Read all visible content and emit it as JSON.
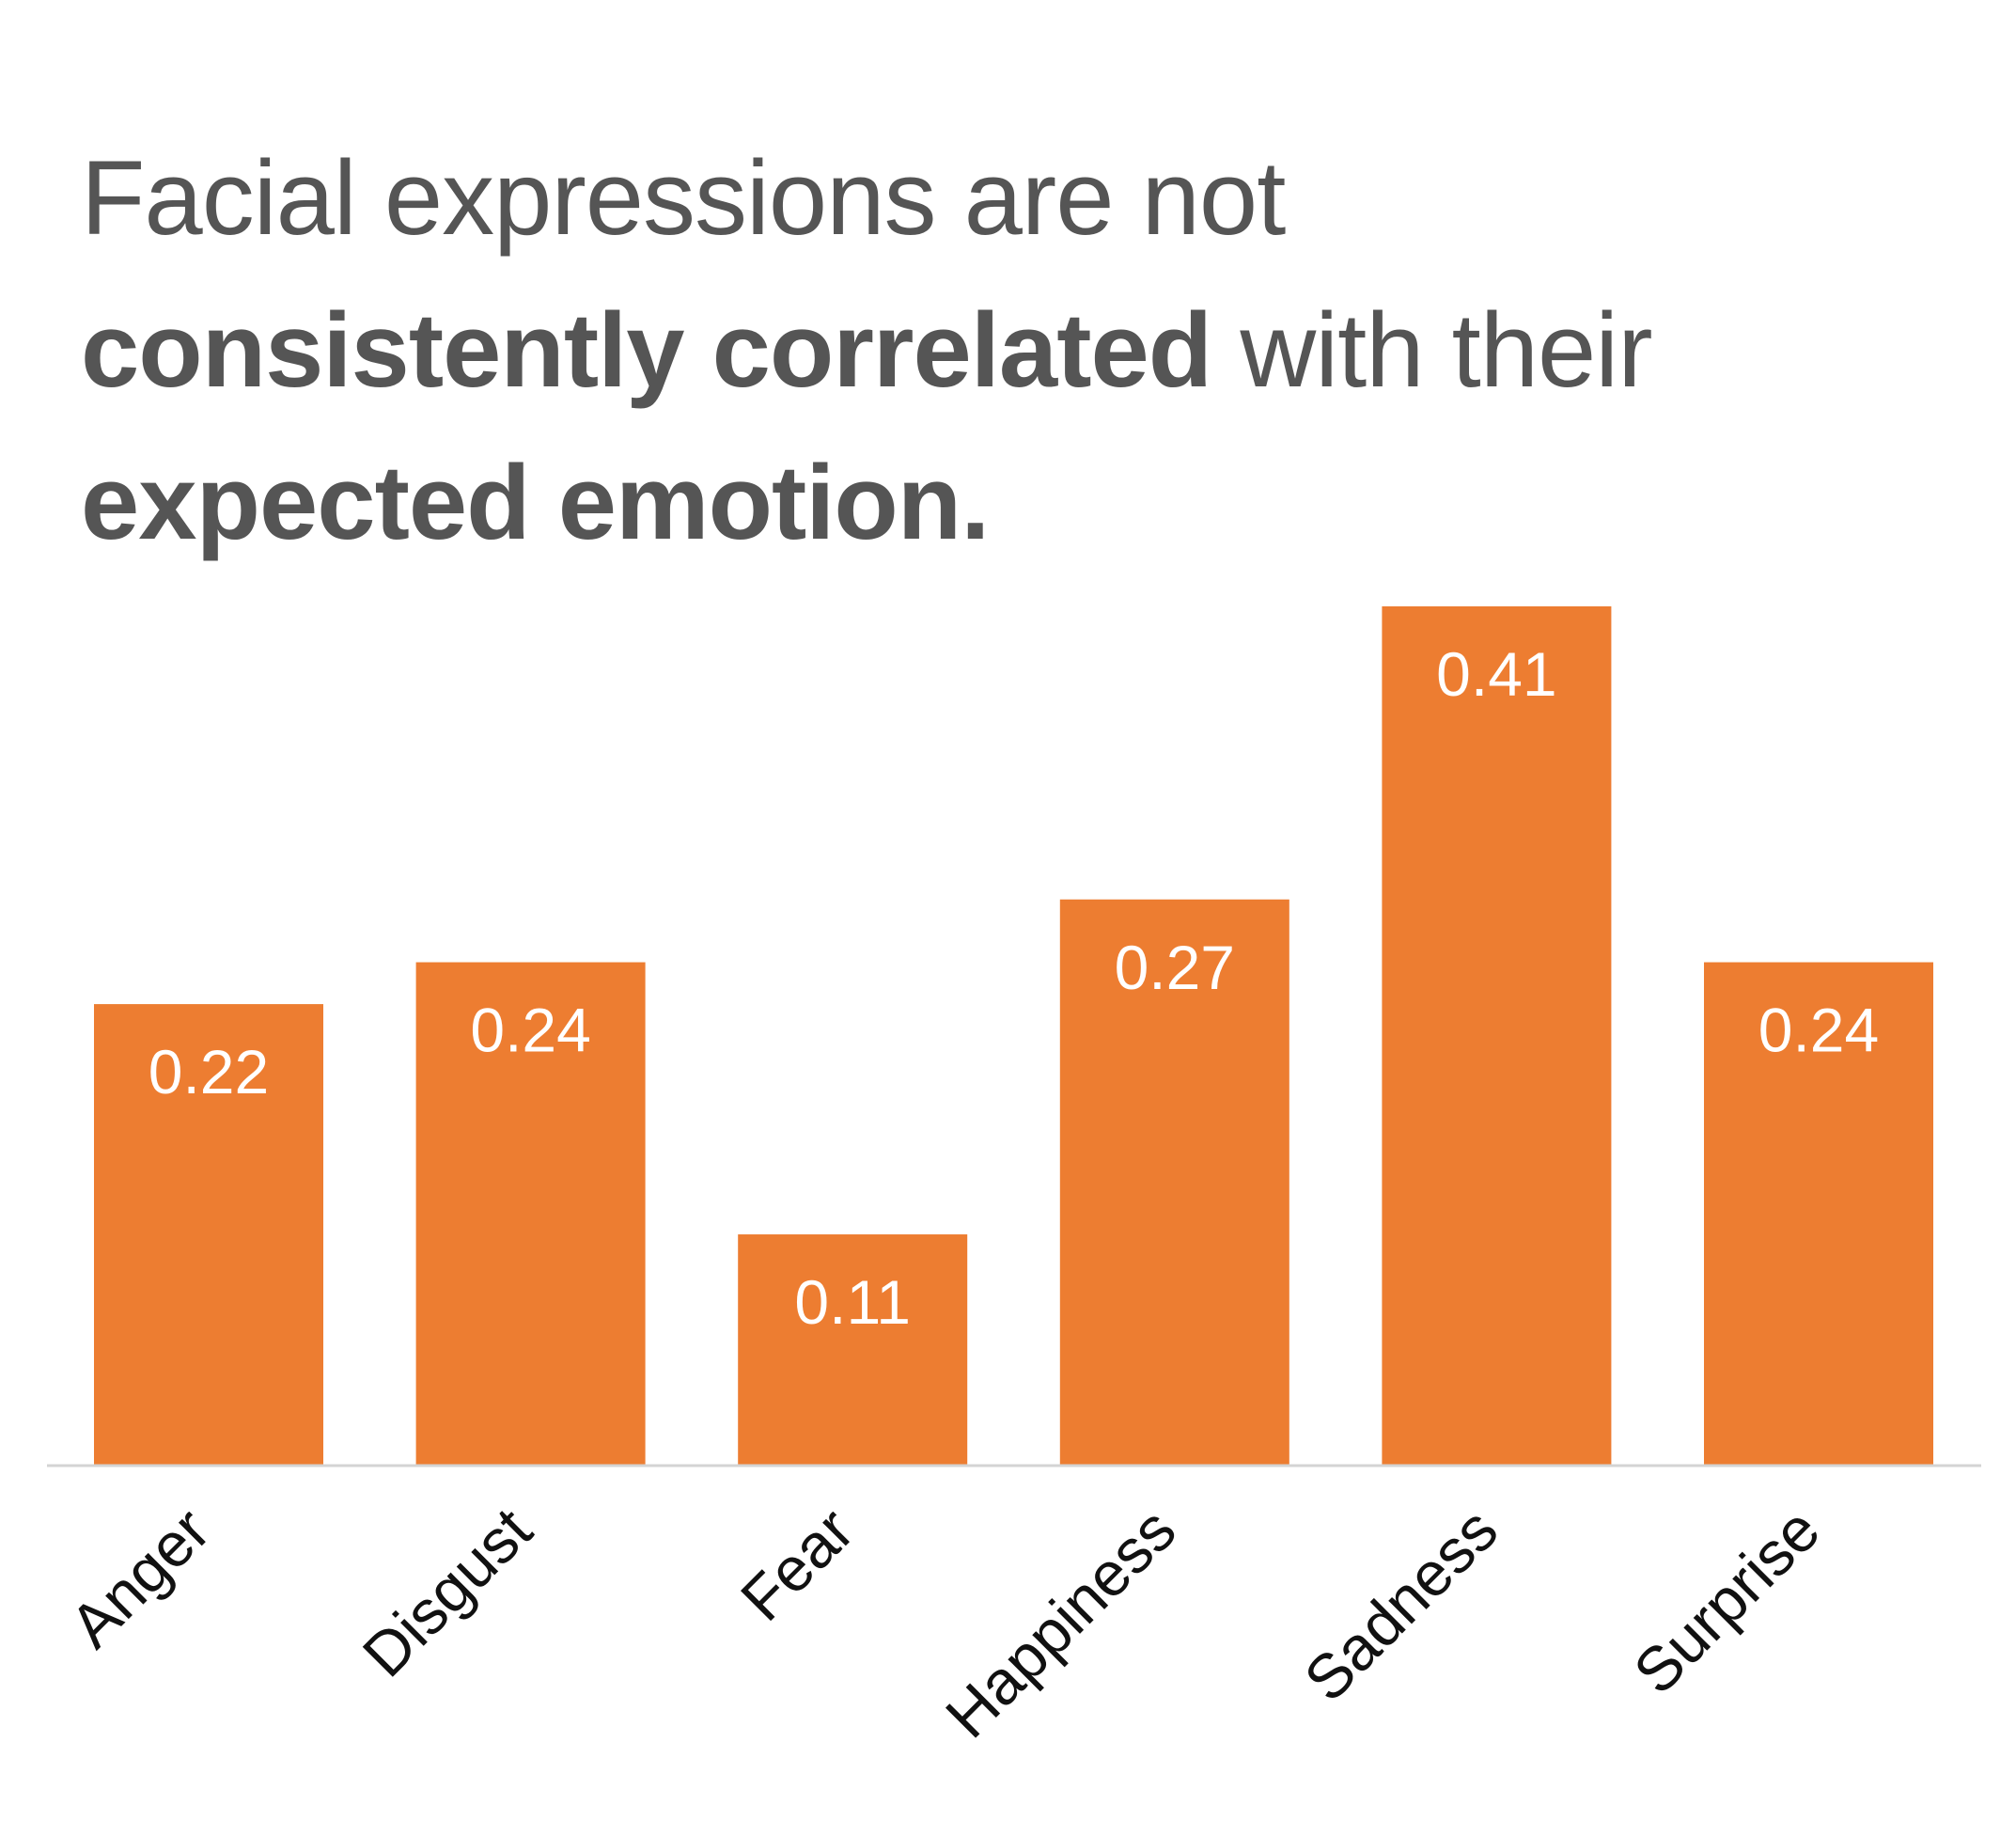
{
  "chart_data": {
    "type": "bar",
    "title_parts": [
      {
        "text": "Facial expressions are not ",
        "bold": false
      },
      {
        "text": "consistently correlated",
        "bold": true
      },
      {
        "text": " with their ",
        "bold": false
      },
      {
        "text": "expected emotion.",
        "bold": true
      }
    ],
    "categories": [
      "Anger",
      "Disgust",
      "Fear",
      "Happiness",
      "Sadness",
      "Surprise"
    ],
    "values": [
      0.22,
      0.24,
      0.11,
      0.27,
      0.41,
      0.24
    ],
    "value_labels": [
      "0.22",
      "0.24",
      "0.11",
      "0.27",
      "0.41",
      "0.24"
    ],
    "bar_color": "#ed7d31",
    "ylim": [
      0,
      0.41
    ],
    "grid": false,
    "legend": "none"
  }
}
